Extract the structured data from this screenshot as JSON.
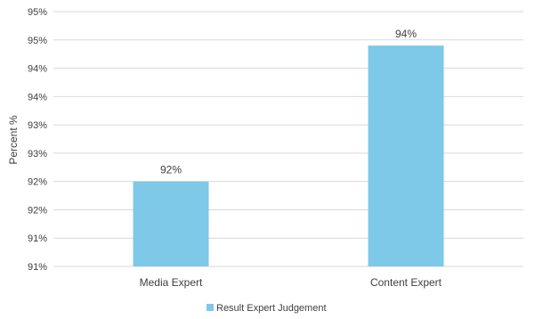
{
  "chart_data": {
    "type": "bar",
    "categories": [
      "Media Expert",
      "Content Expert"
    ],
    "series": [
      {
        "name": "Result Expert Judgement",
        "values": [
          92.0,
          94.4
        ],
        "data_labels": [
          "92%",
          "94%"
        ]
      }
    ],
    "ylabel": "Percent %",
    "xlabel": "",
    "ylim": [
      90.5,
      95.0
    ],
    "yticks": [
      90.5,
      91.0,
      91.5,
      92.0,
      92.5,
      93.0,
      93.5,
      94.0,
      94.5,
      95.0
    ],
    "ytick_labels": [
      "91%",
      "91%",
      "92%",
      "92%",
      "93%",
      "93%",
      "94%",
      "94%",
      "95%",
      "95%"
    ],
    "grid": true,
    "legend_position": "bottom",
    "colors": {
      "bar": "#7ec8e8",
      "grid": "#d9d9d9",
      "text": "#404040"
    }
  }
}
